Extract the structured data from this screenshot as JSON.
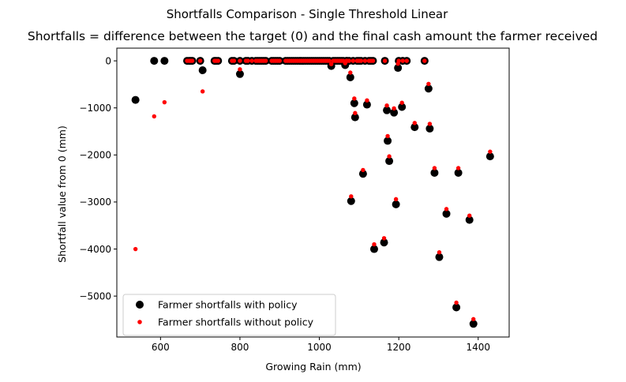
{
  "chart_data": {
    "type": "scatter",
    "suptitle": "Shortfalls Comparison - Single Threshold Linear",
    "title": "Shortfalls = difference between the target (0) and the final cash amount the farmer received",
    "xlabel": "Growing Rain (mm)",
    "ylabel": "Shortfall value from 0 (mm)",
    "xlim": [
      490,
      1478
    ],
    "ylim": [
      -5870,
      270
    ],
    "xticks": [
      600,
      800,
      1000,
      1200,
      1400
    ],
    "yticks": [
      0,
      -1000,
      -2000,
      -3000,
      -4000,
      -5000
    ],
    "xtick_labels": [
      "600",
      "800",
      "1000",
      "1200",
      "1400"
    ],
    "ytick_labels": [
      "0",
      "−1000",
      "−2000",
      "−3000",
      "−4000",
      "−5000"
    ],
    "legend_position": "lower-left",
    "colors": {
      "with_policy": "#000000",
      "without_policy": "#ff0000"
    },
    "series": [
      {
        "name": "Farmer shortfalls with policy",
        "marker": "large-dot",
        "x": [
          537,
          584,
          610,
          667,
          672,
          676,
          680,
          700,
          706,
          736,
          740,
          745,
          780,
          785,
          800,
          800,
          815,
          820,
          830,
          840,
          845,
          850,
          855,
          860,
          865,
          880,
          885,
          890,
          895,
          900,
          915,
          920,
          925,
          930,
          935,
          940,
          945,
          950,
          955,
          960,
          965,
          970,
          975,
          980,
          985,
          990,
          995,
          1000,
          1005,
          1010,
          1015,
          1020,
          1025,
          1030,
          1035,
          1040,
          1045,
          1050,
          1055,
          1060,
          1065,
          1068,
          1070,
          1075,
          1078,
          1080,
          1085,
          1088,
          1090,
          1095,
          1100,
          1105,
          1110,
          1115,
          1120,
          1125,
          1130,
          1135,
          1138,
          1163,
          1165,
          1170,
          1172,
          1176,
          1188,
          1193,
          1198,
          1200,
          1208,
          1210,
          1220,
          1240,
          1265,
          1275,
          1278,
          1290,
          1302,
          1320,
          1345,
          1350,
          1378,
          1388,
          1430
        ],
        "y": [
          -830,
          0,
          0,
          0,
          0,
          0,
          0,
          0,
          -200,
          0,
          0,
          0,
          0,
          0,
          0,
          -280,
          0,
          0,
          0,
          0,
          0,
          0,
          0,
          0,
          0,
          0,
          0,
          0,
          0,
          0,
          0,
          0,
          0,
          0,
          0,
          0,
          0,
          0,
          0,
          0,
          0,
          0,
          0,
          0,
          0,
          0,
          0,
          0,
          0,
          0,
          0,
          0,
          0,
          -110,
          0,
          0,
          0,
          0,
          0,
          0,
          -90,
          0,
          0,
          0,
          -350,
          -2980,
          0,
          -900,
          -1200,
          0,
          0,
          0,
          -2400,
          0,
          -930,
          0,
          0,
          0,
          -4000,
          -3860,
          0,
          -1050,
          -1700,
          -2130,
          -1100,
          -3050,
          -150,
          0,
          -980,
          0,
          0,
          -1410,
          0,
          -590,
          -1440,
          -2380,
          -4170,
          -3250,
          -5240,
          -2380,
          -3380,
          -5590,
          -2030
        ]
      },
      {
        "name": "Farmer shortfalls without policy",
        "marker": "small-dot",
        "x": [
          537,
          584,
          610,
          667,
          672,
          676,
          680,
          700,
          706,
          736,
          740,
          745,
          780,
          785,
          800,
          800,
          815,
          820,
          830,
          840,
          845,
          850,
          855,
          860,
          865,
          880,
          885,
          890,
          895,
          900,
          915,
          920,
          925,
          930,
          935,
          940,
          945,
          950,
          955,
          960,
          965,
          970,
          975,
          980,
          985,
          990,
          995,
          1000,
          1005,
          1010,
          1015,
          1020,
          1025,
          1030,
          1035,
          1040,
          1045,
          1050,
          1055,
          1060,
          1065,
          1068,
          1070,
          1075,
          1078,
          1080,
          1085,
          1088,
          1090,
          1095,
          1100,
          1105,
          1110,
          1115,
          1120,
          1125,
          1130,
          1135,
          1138,
          1163,
          1165,
          1170,
          1172,
          1176,
          1188,
          1193,
          1198,
          1200,
          1208,
          1210,
          1220,
          1240,
          1265,
          1275,
          1278,
          1290,
          1302,
          1320,
          1345,
          1350,
          1378,
          1388,
          1430
        ],
        "y": [
          -4000,
          -1180,
          -880,
          0,
          0,
          0,
          0,
          0,
          -650,
          0,
          0,
          0,
          0,
          0,
          0,
          -180,
          0,
          0,
          0,
          0,
          0,
          0,
          0,
          0,
          0,
          0,
          0,
          0,
          0,
          0,
          0,
          0,
          0,
          0,
          0,
          0,
          0,
          0,
          0,
          0,
          0,
          0,
          0,
          0,
          0,
          0,
          0,
          0,
          0,
          0,
          0,
          0,
          0,
          -70,
          0,
          0,
          0,
          0,
          0,
          0,
          -50,
          0,
          0,
          0,
          -250,
          -2880,
          0,
          -800,
          -1110,
          0,
          0,
          0,
          -2320,
          0,
          -840,
          0,
          0,
          0,
          -3900,
          -3770,
          0,
          -950,
          -1600,
          -2030,
          -1010,
          -2940,
          -60,
          0,
          -890,
          0,
          0,
          -1320,
          0,
          -490,
          -1340,
          -2280,
          -4070,
          -3150,
          -5140,
          -2280,
          -3290,
          -5490,
          -1930
        ]
      }
    ]
  }
}
